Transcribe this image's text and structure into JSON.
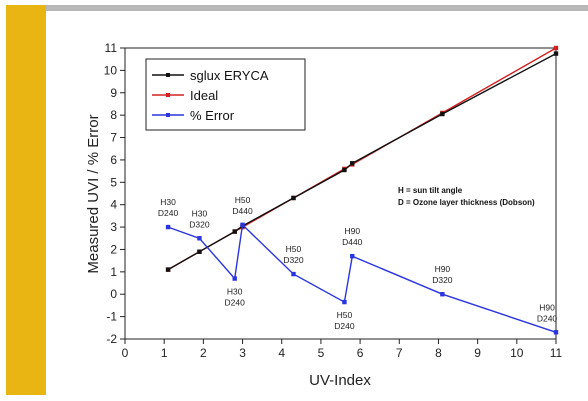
{
  "chart_data": {
    "type": "line",
    "xlabel": "UV-Index",
    "ylabel": "Measured UVI / % Error",
    "xlim": [
      0,
      11
    ],
    "ylim": [
      -2,
      11
    ],
    "xticks": [
      "0",
      "1",
      "2",
      "3",
      "4",
      "5",
      "6",
      "7",
      "8",
      "9",
      "10",
      "11"
    ],
    "yticks": [
      "-2",
      "-1",
      "0",
      "1",
      "2",
      "3",
      "4",
      "5",
      "6",
      "7",
      "8",
      "9",
      "10",
      "11"
    ],
    "grid": false,
    "legend_position": "top-left",
    "series": [
      {
        "name": "sglux ERYCA",
        "color": "#111111",
        "x": [
          1.1,
          1.9,
          2.8,
          3.0,
          4.3,
          5.6,
          5.8,
          8.1,
          11.0
        ],
        "y": [
          1.1,
          1.9,
          2.8,
          3.05,
          4.3,
          5.55,
          5.85,
          8.05,
          10.75
        ]
      },
      {
        "name": "Ideal",
        "color": "#d42020",
        "x": [
          1.1,
          1.9,
          2.8,
          3.0,
          4.3,
          5.6,
          5.8,
          8.1,
          11.0
        ],
        "y": [
          1.1,
          1.9,
          2.8,
          3.0,
          4.3,
          5.6,
          5.8,
          8.1,
          11.0
        ]
      },
      {
        "name": "% Error",
        "color": "#2a35e0",
        "x": [
          1.1,
          1.9,
          2.8,
          3.0,
          4.3,
          5.6,
          5.8,
          8.1,
          11.0
        ],
        "y": [
          3.0,
          2.5,
          0.7,
          3.1,
          0.9,
          -0.35,
          1.7,
          0.0,
          -1.7
        ]
      }
    ],
    "annotations": [
      {
        "line1": "H30",
        "line2": "D240",
        "x": 1.1,
        "y": 3.0,
        "placement": "above"
      },
      {
        "line1": "H30",
        "line2": "D320",
        "x": 1.9,
        "y": 2.5,
        "placement": "above"
      },
      {
        "line1": "H30",
        "line2": "D240",
        "x": 2.8,
        "y": 0.7,
        "placement": "below"
      },
      {
        "line1": "H50",
        "line2": "D440",
        "x": 3.0,
        "y": 3.1,
        "placement": "above"
      },
      {
        "line1": "H50",
        "line2": "D320",
        "x": 4.3,
        "y": 0.9,
        "placement": "above"
      },
      {
        "line1": "H50",
        "line2": "D240",
        "x": 5.6,
        "y": -0.35,
        "placement": "below"
      },
      {
        "line1": "H90",
        "line2": "D440",
        "x": 5.8,
        "y": 1.7,
        "placement": "above"
      },
      {
        "line1": "H90",
        "line2": "D320",
        "x": 8.1,
        "y": 0.0,
        "placement": "above"
      },
      {
        "line1": "H90",
        "line2": "D240",
        "x": 11.0,
        "y": -1.7,
        "placement": "above"
      }
    ],
    "notes": [
      "H = sun tilt angle",
      "D = Ozone layer thickness (Dobson)"
    ]
  },
  "colors": {
    "accent": "#e8b512",
    "frame": "#b8b8b8"
  }
}
